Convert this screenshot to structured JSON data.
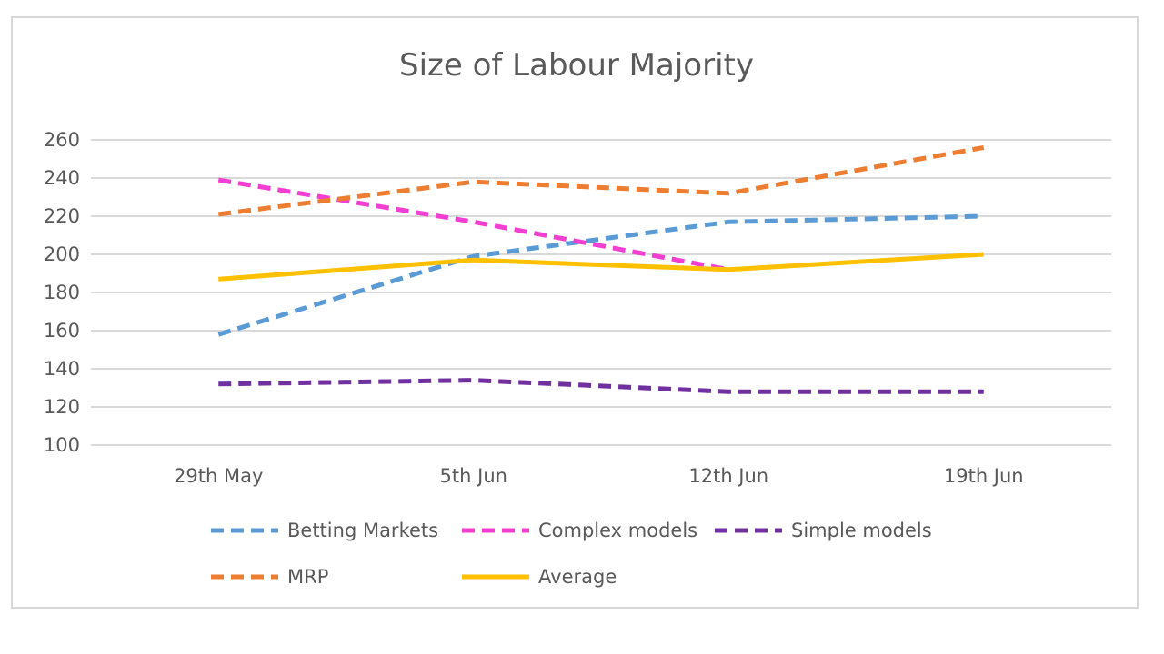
{
  "chart_data": {
    "type": "line",
    "title": "Size of Labour Majority",
    "xlabel": "",
    "ylabel": "",
    "categories": [
      "29th May",
      "5th Jun",
      "12th Jun",
      "19th Jun"
    ],
    "y_ticks": [
      100,
      120,
      140,
      160,
      180,
      200,
      220,
      240,
      260
    ],
    "ylim": [
      100,
      260
    ],
    "grid": true,
    "legend_position": "bottom",
    "series": [
      {
        "name": "Betting Markets",
        "color": "#5b9bd5",
        "dashed": true,
        "values": [
          158,
          199,
          217,
          220
        ]
      },
      {
        "name": "Complex models",
        "color": "#f23fd2",
        "dashed": true,
        "values": [
          239,
          217,
          192,
          null
        ]
      },
      {
        "name": "Simple models",
        "color": "#7030a0",
        "dashed": true,
        "values": [
          132,
          134,
          128,
          128
        ]
      },
      {
        "name": "MRP",
        "color": "#ed7d31",
        "dashed": true,
        "values": [
          221,
          238,
          232,
          256
        ]
      },
      {
        "name": "Average",
        "color": "#ffc000",
        "dashed": false,
        "values": [
          187,
          197,
          192,
          200
        ]
      }
    ]
  }
}
